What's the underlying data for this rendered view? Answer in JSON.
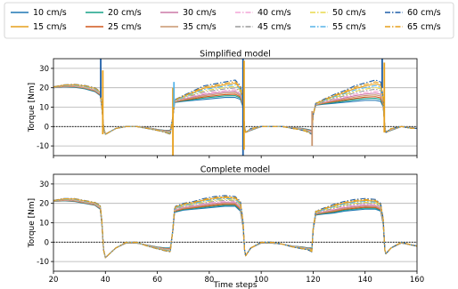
{
  "legend": {
    "placement": "top",
    "entries": [
      {
        "label": "10 cm/s",
        "color": "#1f77b4",
        "dash": "solid"
      },
      {
        "label": "15 cm/s",
        "color": "#e69f1c",
        "dash": "solid"
      },
      {
        "label": "20 cm/s",
        "color": "#17a187",
        "dash": "solid"
      },
      {
        "label": "25 cm/s",
        "color": "#d0571c",
        "dash": "solid"
      },
      {
        "label": "30 cm/s",
        "color": "#cc79a7",
        "dash": "solid"
      },
      {
        "label": "35 cm/s",
        "color": "#c9956e",
        "dash": "solid"
      },
      {
        "label": "40 cm/s",
        "color": "#f4a6d7",
        "dash": "dashdot"
      },
      {
        "label": "45 cm/s",
        "color": "#9a9a9a",
        "dash": "dashdot"
      },
      {
        "label": "50 cm/s",
        "color": "#e8d84a",
        "dash": "dashdot"
      },
      {
        "label": "55 cm/s",
        "color": "#56b4e9",
        "dash": "dashdot"
      },
      {
        "label": "60 cm/s",
        "color": "#1f5fa8",
        "dash": "dashdot"
      },
      {
        "label": "65 cm/s",
        "color": "#e69f1c",
        "dash": "dashdot"
      }
    ]
  },
  "chart_data": [
    {
      "type": "line",
      "title": "Simplified model",
      "ylabel": "Torque [Nm]",
      "xlabel": "",
      "xlim": [
        20,
        160
      ],
      "ylim": [
        -15,
        35
      ],
      "yticks": [
        -10,
        0,
        10,
        20,
        30
      ],
      "xticks": [
        20,
        40,
        60,
        80,
        100,
        120,
        140,
        160
      ],
      "grid": "y",
      "reference_line": {
        "y": 0,
        "style": "dotted"
      },
      "x": [
        20,
        24,
        28,
        32,
        36,
        38,
        38.6,
        39.3,
        40,
        44,
        48,
        52,
        56,
        60,
        63,
        65,
        66,
        66.6,
        67,
        70,
        74,
        78,
        82,
        86,
        90,
        92,
        93,
        93.6,
        94,
        96,
        100,
        104,
        108,
        112,
        116,
        118,
        119.5,
        120,
        121,
        124,
        128,
        132,
        136,
        140,
        144,
        146,
        147,
        147.6,
        148,
        150,
        154,
        158,
        160
      ],
      "series_low": [
        20,
        20.5,
        20.3,
        19.5,
        18,
        16,
        10,
        0,
        -4,
        -1,
        0,
        0,
        -0.5,
        -1.5,
        -2,
        -2,
        5,
        12,
        12.5,
        13,
        13.5,
        14,
        14.5,
        15,
        15,
        14,
        10,
        0,
        -3,
        -2,
        0,
        0,
        0,
        -0.5,
        -1,
        -1.5,
        -2,
        6,
        11,
        11.5,
        12,
        12.5,
        13,
        13.5,
        13.5,
        13,
        10,
        0,
        -3,
        -2,
        0,
        -0.5,
        -1
      ],
      "series_high": [
        20.5,
        21.5,
        21.8,
        21.2,
        20,
        18,
        12,
        -2,
        -4,
        -1,
        0,
        0,
        -1,
        -2,
        -3,
        -4,
        5,
        13,
        14,
        16,
        18.5,
        21,
        22,
        23,
        24,
        21,
        14,
        -2,
        -3,
        -1,
        0,
        0,
        0,
        -1,
        -2,
        -3,
        -4,
        6,
        12,
        14,
        16.5,
        18.5,
        21,
        22.5,
        24,
        23,
        15,
        -2,
        -3,
        -1,
        0,
        -1,
        -1
      ],
      "spikes": [
        {
          "x": 38.2,
          "min": 15,
          "max": 35,
          "series": "60 cm/s"
        },
        {
          "x": 39.0,
          "min": -4,
          "max": 29,
          "series": "15 cm/s"
        },
        {
          "x": 66.0,
          "min": -15,
          "max": 20,
          "series": "15 cm/s"
        },
        {
          "x": 66.4,
          "min": 10,
          "max": 23,
          "series": "55 cm/s"
        },
        {
          "x": 93.0,
          "min": -15,
          "max": 35,
          "series": "60 cm/s"
        },
        {
          "x": 93.4,
          "min": -12,
          "max": 34,
          "series": "15 cm/s"
        },
        {
          "x": 119.6,
          "min": -10,
          "max": 8,
          "series": "35 cm/s"
        },
        {
          "x": 146.6,
          "min": 20,
          "max": 35,
          "series": "60 cm/s"
        },
        {
          "x": 147.4,
          "min": -3,
          "max": 33,
          "series": "15 cm/s"
        }
      ]
    },
    {
      "type": "line",
      "title": "Complete model",
      "ylabel": "Torque [Nm]",
      "xlabel": "Time steps",
      "xlim": [
        20,
        160
      ],
      "ylim": [
        -15,
        35
      ],
      "yticks": [
        -10,
        0,
        10,
        20,
        30
      ],
      "xticks": [
        20,
        40,
        60,
        80,
        100,
        120,
        140,
        160
      ],
      "grid": "y",
      "reference_line": {
        "y": 0,
        "style": "dotted"
      },
      "x": [
        20,
        24,
        28,
        32,
        36,
        38,
        38.6,
        39.3,
        40,
        44,
        48,
        52,
        56,
        60,
        63,
        65,
        66,
        66.6,
        67,
        70,
        74,
        78,
        82,
        86,
        90,
        92,
        93,
        93.6,
        94,
        96,
        100,
        104,
        108,
        112,
        116,
        118,
        119.5,
        120,
        121,
        124,
        128,
        132,
        136,
        140,
        144,
        146,
        147,
        147.6,
        148,
        150,
        154,
        158,
        160
      ],
      "series_low": [
        21,
        21.3,
        21,
        20,
        19,
        17,
        10,
        -4,
        -8,
        -3,
        -0.5,
        -0.5,
        -1.5,
        -2.5,
        -3,
        -3,
        6,
        15,
        15.5,
        16.5,
        17,
        17.5,
        18,
        18.5,
        18.5,
        16,
        8,
        -4,
        -7,
        -3,
        -0.5,
        -0.5,
        -1,
        -2,
        -2.5,
        -3,
        -3,
        6,
        14,
        14.5,
        15,
        16,
        16.5,
        17,
        17,
        16,
        9,
        -4,
        -6,
        -3,
        -0.5,
        -1.5,
        -2
      ],
      "series_high": [
        21.5,
        22.5,
        22.5,
        21.5,
        20.5,
        19,
        12,
        -4,
        -8,
        -3,
        0,
        0,
        -2,
        -3.5,
        -4.5,
        -5,
        7,
        17,
        18.5,
        20,
        21,
        22.5,
        23.5,
        24,
        23.5,
        21,
        11,
        -4,
        -7,
        -3,
        0,
        0,
        -1,
        -2.5,
        -3.5,
        -4,
        -5,
        7,
        16,
        17.5,
        19.5,
        21,
        22,
        22.5,
        22,
        20,
        12,
        -4,
        -6,
        -3,
        0,
        -1.5,
        -2
      ]
    }
  ]
}
